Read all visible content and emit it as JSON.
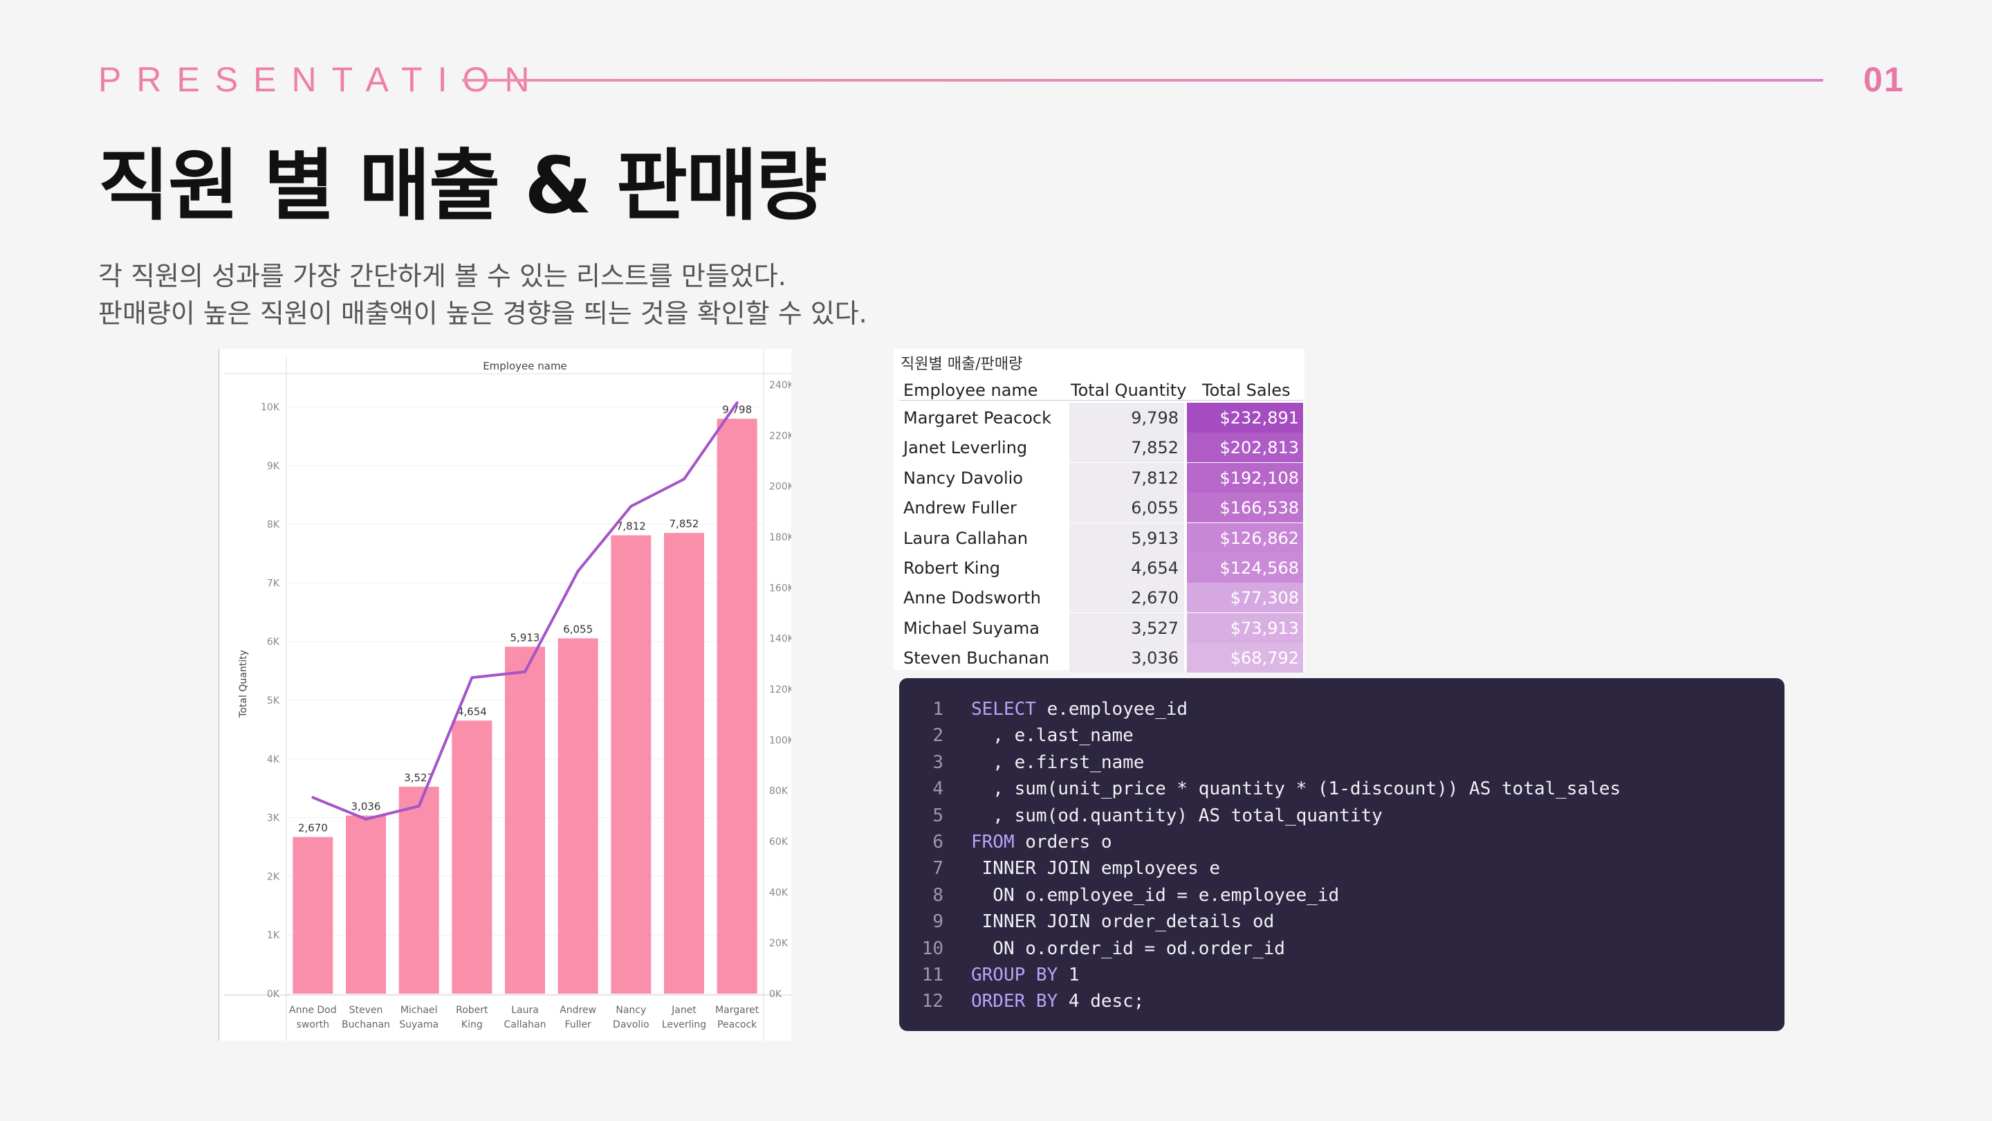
{
  "header": {
    "label": "PRESENTATION",
    "page_number": "01",
    "title": "직원 별 매출 & 판매량",
    "description": [
      "각 직원의 성과를 가장 간단하게 볼 수 있는 리스트를 만들었다.",
      "판매량이 높은 직원이 매출액이 높은 경향을 띄는 것을 확인할 수 있다."
    ]
  },
  "colors": {
    "accent": "#ef7fa5",
    "bar": "#f98fab",
    "line": "#a555c8",
    "code_bg": "#2c2640"
  },
  "chart_data": {
    "type": "bar",
    "title": "Employee name",
    "xlabel": "",
    "ylabel": "Total Quantity",
    "categories": [
      [
        "Anne Dod",
        "sworth"
      ],
      [
        "Steven",
        "Buchanan"
      ],
      [
        "Michael",
        "Suyama"
      ],
      [
        "Robert",
        "King"
      ],
      [
        "Laura",
        "Callahan"
      ],
      [
        "Andrew",
        "Fuller"
      ],
      [
        "Nancy",
        "Davolio"
      ],
      [
        "Janet",
        "Leverling"
      ],
      [
        "Margaret",
        "Peacock"
      ]
    ],
    "series": [
      {
        "type": "bar",
        "axis": "left",
        "values": [
          2670,
          3036,
          3527,
          4654,
          5913,
          6055,
          7812,
          7852,
          9798
        ],
        "labels": [
          "2,670",
          "3,036",
          "3,527",
          "4,654",
          "5,913",
          "6,055",
          "7,812",
          "7,852",
          "9,798"
        ]
      },
      {
        "type": "line",
        "axis": "right",
        "values": [
          77308,
          68792,
          73913,
          124568,
          126862,
          166538,
          192108,
          202813,
          232891
        ]
      }
    ],
    "ylim": [
      0,
      10000
    ],
    "y_ticks": [
      "0K",
      "1K",
      "2K",
      "3K",
      "4K",
      "5K",
      "6K",
      "7K",
      "8K",
      "9K",
      "10K"
    ],
    "y2lim": [
      0,
      240000
    ],
    "y2_ticks": [
      "0K",
      "20K",
      "40K",
      "60K",
      "80K",
      "100K",
      "120K",
      "140K",
      "160K",
      "180K",
      "200K",
      "220K",
      "240K"
    ],
    "grid": true
  },
  "table": {
    "title": "직원별 매출/판매량",
    "headers": [
      "Employee name",
      "Total Quantity",
      "Total Sales"
    ],
    "rows": [
      [
        "Margaret Peacock",
        "9,798",
        "$232,891"
      ],
      [
        "Janet Leverling",
        "7,852",
        "$202,813"
      ],
      [
        "Nancy Davolio",
        "7,812",
        "$192,108"
      ],
      [
        "Andrew Fuller",
        "6,055",
        "$166,538"
      ],
      [
        "Laura Callahan",
        "5,913",
        "$126,862"
      ],
      [
        "Robert King",
        "4,654",
        "$124,568"
      ],
      [
        "Anne Dodsworth",
        "2,670",
        "$77,308"
      ],
      [
        "Michael Suyama",
        "3,527",
        "$73,913"
      ],
      [
        "Steven Buchanan",
        "3,036",
        "$68,792"
      ]
    ]
  },
  "code": {
    "lines": [
      {
        "n": "1",
        "text": "SELECT e.employee_id"
      },
      {
        "n": "2",
        "text": "  , e.last_name"
      },
      {
        "n": "3",
        "text": "  , e.first_name"
      },
      {
        "n": "4",
        "text": "  , sum(unit_price * quantity * (1-discount)) AS total_sales"
      },
      {
        "n": "5",
        "text": "  , sum(od.quantity) AS total_quantity"
      },
      {
        "n": "6",
        "text": "FROM orders o"
      },
      {
        "n": "7",
        "text": " INNER JOIN employees e"
      },
      {
        "n": "8",
        "text": "  ON o.employee_id = e.employee_id"
      },
      {
        "n": "9",
        "text": " INNER JOIN order_details od"
      },
      {
        "n": "10",
        "text": "  ON o.order_id = od.order_id"
      },
      {
        "n": "11",
        "text": "GROUP BY 1"
      },
      {
        "n": "12",
        "text": "ORDER BY 4 desc;"
      }
    ]
  }
}
